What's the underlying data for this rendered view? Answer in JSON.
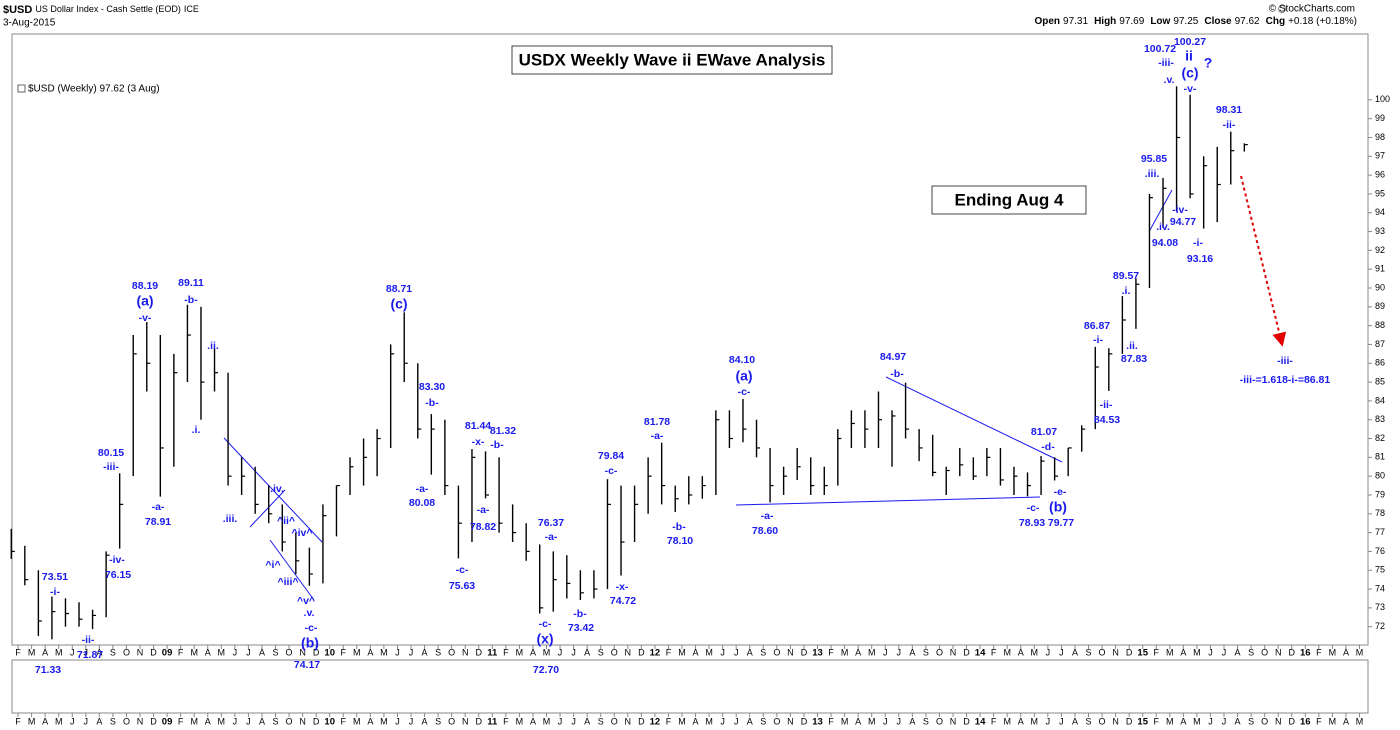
{
  "header": {
    "symbol": "$USD",
    "name": "US Dollar Index - Cash Settle (EOD)",
    "exchange": "ICE",
    "date": "3-Aug-2015",
    "copyright": "© StockCharts.com",
    "ohlc": [
      {
        "label": "Open",
        "value": 97.31
      },
      {
        "label": "High",
        "value": 97.69
      },
      {
        "label": "Low",
        "value": 97.25
      },
      {
        "label": "Close",
        "value": 97.62
      }
    ],
    "change_label": "Chg",
    "change": "+0.18 (+0.18%)"
  },
  "chart_data": {
    "type": "ohlc",
    "title": "USDX Weekly Wave ii EWave Analysis",
    "subtitle": "Ending Aug 4",
    "legend_text": "$USD (Weekly) 97.62 (3 Aug)",
    "x": [
      "2008-01",
      "2008-02",
      "2008-03",
      "2008-04",
      "2008-05",
      "2008-06",
      "2008-07",
      "2008-08",
      "2008-09",
      "2008-10",
      "2008-11",
      "2008-12",
      "2009-01",
      "2009-02",
      "2009-03",
      "2009-04",
      "2009-05",
      "2009-06",
      "2009-07",
      "2009-08",
      "2009-09",
      "2009-10",
      "2009-11",
      "2009-12",
      "2010-01",
      "2010-02",
      "2010-03",
      "2010-04",
      "2010-05",
      "2010-06",
      "2010-07",
      "2010-08",
      "2010-09",
      "2010-10",
      "2010-11",
      "2010-12",
      "2011-01",
      "2011-02",
      "2011-03",
      "2011-04",
      "2011-05",
      "2011-06",
      "2011-07",
      "2011-08",
      "2011-09",
      "2011-10",
      "2011-11",
      "2011-12",
      "2012-01",
      "2012-02",
      "2012-03",
      "2012-04",
      "2012-05",
      "2012-06",
      "2012-07",
      "2012-08",
      "2012-09",
      "2012-10",
      "2012-11",
      "2012-12",
      "2013-01",
      "2013-02",
      "2013-03",
      "2013-04",
      "2013-05",
      "2013-06",
      "2013-07",
      "2013-08",
      "2013-09",
      "2013-10",
      "2013-11",
      "2013-12",
      "2014-01",
      "2014-02",
      "2014-03",
      "2014-04",
      "2014-05",
      "2014-06",
      "2014-07",
      "2014-08",
      "2014-09",
      "2014-10",
      "2014-11",
      "2014-12",
      "2015-01",
      "2015-02",
      "2015-03",
      "2015-04",
      "2015-05",
      "2015-06",
      "2015-07",
      "2015-08"
    ],
    "series": [
      {
        "name": "$USD",
        "color": "#000000",
        "high": [
          77.2,
          76.3,
          75.0,
          73.6,
          73.51,
          73.3,
          72.9,
          76.0,
          80.15,
          87.5,
          88.19,
          87.5,
          86.5,
          89.11,
          89.0,
          86.8,
          85.5,
          81.0,
          80.5,
          79.5,
          78.5,
          77.0,
          76.2,
          78.5,
          79.5,
          81.0,
          82.0,
          82.5,
          87.0,
          88.71,
          86.0,
          83.3,
          83.0,
          79.5,
          81.44,
          81.32,
          81.0,
          78.5,
          77.5,
          76.37,
          76.0,
          75.8,
          75.0,
          75.0,
          79.84,
          79.5,
          79.5,
          81.0,
          81.78,
          79.5,
          80.0,
          80.0,
          83.5,
          83.5,
          84.1,
          83.0,
          81.5,
          80.5,
          81.5,
          81.0,
          80.5,
          82.5,
          83.5,
          83.5,
          84.5,
          83.5,
          84.97,
          82.5,
          82.2,
          80.5,
          81.5,
          81.0,
          81.5,
          81.5,
          80.5,
          80.2,
          81.07,
          81.0,
          81.5,
          82.7,
          86.87,
          86.8,
          89.57,
          90.5,
          95.0,
          95.85,
          100.72,
          100.27,
          97.0,
          97.5,
          98.31,
          97.69
        ],
        "low": [
          75.6,
          74.2,
          71.5,
          71.33,
          72.0,
          72.0,
          71.87,
          72.5,
          76.15,
          80.0,
          84.5,
          78.91,
          80.5,
          85.0,
          83.0,
          84.5,
          79.5,
          79.0,
          78.0,
          77.5,
          76.0,
          74.8,
          74.17,
          74.3,
          76.8,
          79.0,
          79.5,
          80.0,
          81.5,
          85.0,
          82.0,
          80.08,
          79.0,
          75.63,
          76.5,
          78.82,
          77.0,
          76.5,
          75.5,
          72.7,
          72.8,
          73.5,
          73.42,
          73.5,
          74.0,
          74.72,
          76.5,
          78.0,
          78.5,
          78.1,
          78.5,
          78.8,
          79.0,
          81.5,
          81.8,
          81.0,
          78.6,
          79.0,
          79.8,
          79.0,
          79.0,
          79.5,
          81.5,
          81.5,
          81.5,
          80.5,
          82.0,
          80.8,
          80.0,
          79.0,
          80.0,
          79.8,
          80.0,
          79.5,
          79.0,
          78.93,
          79.0,
          79.77,
          80.0,
          81.3,
          82.5,
          84.53,
          86.5,
          87.83,
          90.0,
          93.2,
          94.08,
          94.77,
          93.16,
          93.5,
          95.5,
          97.25
        ],
        "close": [
          76.0,
          74.5,
          72.3,
          72.8,
          72.7,
          72.4,
          72.6,
          75.8,
          78.5,
          86.5,
          86.0,
          81.5,
          85.5,
          87.5,
          85.0,
          85.5,
          80.0,
          80.0,
          78.5,
          78.0,
          76.5,
          75.5,
          74.8,
          77.9,
          79.5,
          80.5,
          81.0,
          82.0,
          86.5,
          86.0,
          82.5,
          82.5,
          79.5,
          77.5,
          81.0,
          79.0,
          77.5,
          77.0,
          76.0,
          73.0,
          74.5,
          74.3,
          73.8,
          74.0,
          78.5,
          76.5,
          78.5,
          80.0,
          79.5,
          78.8,
          79.0,
          79.5,
          83.0,
          82.0,
          82.5,
          81.5,
          79.5,
          80.0,
          80.5,
          79.5,
          79.5,
          82.0,
          82.8,
          82.5,
          83.0,
          83.2,
          82.5,
          81.5,
          80.2,
          80.3,
          80.6,
          80.0,
          81.0,
          79.8,
          80.0,
          79.5,
          80.8,
          80.0,
          81.5,
          82.5,
          85.8,
          86.5,
          88.3,
          90.2,
          94.8,
          95.3,
          98.0,
          95.0,
          96.5,
          95.5,
          97.3,
          97.62
        ]
      }
    ],
    "xlim": [
      "2008-01",
      "2016-06"
    ],
    "xticks": [
      {
        "value": "2008-02",
        "label": "F"
      },
      {
        "value": "2008-03",
        "label": "M"
      },
      {
        "value": "2008-04",
        "label": "A"
      },
      {
        "value": "2008-05",
        "label": "M"
      },
      {
        "value": "2008-06",
        "label": "J"
      },
      {
        "value": "2008-07",
        "label": "J"
      },
      {
        "value": "2008-08",
        "label": "A"
      },
      {
        "value": "2008-09",
        "label": "S"
      },
      {
        "value": "2008-10",
        "label": "O"
      },
      {
        "value": "2008-11",
        "label": "N"
      },
      {
        "value": "2008-12",
        "label": "D"
      },
      {
        "value": "2009-01",
        "label": "09"
      },
      {
        "value": "2009-02",
        "label": "F"
      },
      {
        "value": "2009-03",
        "label": "M"
      },
      {
        "value": "2009-04",
        "label": "A"
      },
      {
        "value": "2009-05",
        "label": "M"
      },
      {
        "value": "2009-06",
        "label": "J"
      },
      {
        "value": "2009-07",
        "label": "J"
      },
      {
        "value": "2009-08",
        "label": "A"
      },
      {
        "value": "2009-09",
        "label": "S"
      },
      {
        "value": "2009-10",
        "label": "O"
      },
      {
        "value": "2009-11",
        "label": "N"
      },
      {
        "value": "2009-12",
        "label": "D"
      },
      {
        "value": "2010-01",
        "label": "10"
      },
      {
        "value": "2010-02",
        "label": "F"
      },
      {
        "value": "2010-03",
        "label": "M"
      },
      {
        "value": "2010-04",
        "label": "A"
      },
      {
        "value": "2010-05",
        "label": "M"
      },
      {
        "value": "2010-06",
        "label": "J"
      },
      {
        "value": "2010-07",
        "label": "J"
      },
      {
        "value": "2010-08",
        "label": "A"
      },
      {
        "value": "2010-09",
        "label": "S"
      },
      {
        "value": "2010-10",
        "label": "O"
      },
      {
        "value": "2010-11",
        "label": "N"
      },
      {
        "value": "2010-12",
        "label": "D"
      },
      {
        "value": "2011-01",
        "label": "11"
      },
      {
        "value": "2011-02",
        "label": "F"
      },
      {
        "value": "2011-03",
        "label": "M"
      },
      {
        "value": "2011-04",
        "label": "A"
      },
      {
        "value": "2011-05",
        "label": "M"
      },
      {
        "value": "2011-06",
        "label": "J"
      },
      {
        "value": "2011-07",
        "label": "J"
      },
      {
        "value": "2011-08",
        "label": "A"
      },
      {
        "value": "2011-09",
        "label": "S"
      },
      {
        "value": "2011-10",
        "label": "O"
      },
      {
        "value": "2011-11",
        "label": "N"
      },
      {
        "value": "2011-12",
        "label": "D"
      },
      {
        "value": "2012-01",
        "label": "12"
      },
      {
        "value": "2012-02",
        "label": "F"
      },
      {
        "value": "2012-03",
        "label": "M"
      },
      {
        "value": "2012-04",
        "label": "A"
      },
      {
        "value": "2012-05",
        "label": "M"
      },
      {
        "value": "2012-06",
        "label": "J"
      },
      {
        "value": "2012-07",
        "label": "J"
      },
      {
        "value": "2012-08",
        "label": "A"
      },
      {
        "value": "2012-09",
        "label": "S"
      },
      {
        "value": "2012-10",
        "label": "O"
      },
      {
        "value": "2012-11",
        "label": "N"
      },
      {
        "value": "2012-12",
        "label": "D"
      },
      {
        "value": "2013-01",
        "label": "13"
      },
      {
        "value": "2013-02",
        "label": "F"
      },
      {
        "value": "2013-03",
        "label": "M"
      },
      {
        "value": "2013-04",
        "label": "A"
      },
      {
        "value": "2013-05",
        "label": "M"
      },
      {
        "value": "2013-06",
        "label": "J"
      },
      {
        "value": "2013-07",
        "label": "J"
      },
      {
        "value": "2013-08",
        "label": "A"
      },
      {
        "value": "2013-09",
        "label": "S"
      },
      {
        "value": "2013-10",
        "label": "O"
      },
      {
        "value": "2013-11",
        "label": "N"
      },
      {
        "value": "2013-12",
        "label": "D"
      },
      {
        "value": "2014-01",
        "label": "14"
      },
      {
        "value": "2014-02",
        "label": "F"
      },
      {
        "value": "2014-03",
        "label": "M"
      },
      {
        "value": "2014-04",
        "label": "A"
      },
      {
        "value": "2014-05",
        "label": "M"
      },
      {
        "value": "2014-06",
        "label": "J"
      },
      {
        "value": "2014-07",
        "label": "J"
      },
      {
        "value": "2014-08",
        "label": "A"
      },
      {
        "value": "2014-09",
        "label": "S"
      },
      {
        "value": "2014-10",
        "label": "O"
      },
      {
        "value": "2014-11",
        "label": "N"
      },
      {
        "value": "2014-12",
        "label": "D"
      },
      {
        "value": "2015-01",
        "label": "15"
      },
      {
        "value": "2015-02",
        "label": "F"
      },
      {
        "value": "2015-03",
        "label": "M"
      },
      {
        "value": "2015-04",
        "label": "A"
      },
      {
        "value": "2015-05",
        "label": "M"
      },
      {
        "value": "2015-06",
        "label": "J"
      },
      {
        "value": "2015-07",
        "label": "J"
      },
      {
        "value": "2015-08",
        "label": "A"
      },
      {
        "value": "2015-09",
        "label": "S"
      },
      {
        "value": "2015-10",
        "label": "O"
      },
      {
        "value": "2015-11",
        "label": "N"
      },
      {
        "value": "2015-12",
        "label": "D"
      },
      {
        "value": "2016-01",
        "label": "16"
      },
      {
        "value": "2016-02",
        "label": "F"
      },
      {
        "value": "2016-03",
        "label": "M"
      },
      {
        "value": "2016-04",
        "label": "A"
      },
      {
        "value": "2016-05",
        "label": "M"
      }
    ],
    "ylim": [
      71,
      103.5
    ],
    "yticks": [
      72,
      73,
      74,
      75,
      76,
      77,
      78,
      79,
      80,
      81,
      82,
      83,
      84,
      85,
      86,
      87,
      88,
      89,
      90,
      91,
      92,
      93,
      94,
      95,
      96,
      97,
      98,
      99,
      100
    ],
    "annotations": [
      "73.51",
      "-i-",
      "71.33",
      "-ii-",
      "71.87",
      "80.15",
      "-iii-",
      "-iv-",
      "76.15",
      "88.19",
      "(a)",
      "-v-",
      "89.11",
      "-b-",
      ".ii.",
      ".i.",
      "-a-",
      "78.91",
      ".iii.",
      ".iv.",
      "^ii^",
      "^iv^",
      "^i^",
      "^iii^",
      "^v^",
      ".v.",
      "-c-",
      "(b)",
      "74.17",
      "88.71",
      "(c)",
      "83.30",
      "-b-",
      "-a-",
      "80.08",
      "-c-",
      "75.63",
      "81.44",
      "-x-",
      "81.32",
      "-b-",
      "-a-",
      "78.82",
      "76.37",
      "-a-",
      "-c-",
      "(x)",
      "72.70",
      "-b-",
      "73.42",
      "79.84",
      "-c-",
      "-x-",
      "74.72",
      "81.78",
      "-a-",
      "-b-",
      "78.10",
      "84.10",
      "(a)",
      "-c-",
      "-a-",
      "78.60",
      "84.97",
      "-b-",
      "81.07",
      "-d-",
      "-e-",
      "(b)",
      "-c-",
      "78.93",
      "79.77",
      "86.87",
      "-i-",
      "-ii-",
      "84.53",
      "89.57",
      ".i.",
      ".ii.",
      "87.83",
      "95.85",
      ".iii.",
      ".iv.",
      "94.08",
      "-iv-",
      "94.77",
      "100.72",
      "-iii-",
      ".v.",
      "100.27",
      "ii",
      "(c)",
      "?",
      "-v-",
      "-i-",
      "93.16",
      "98.31",
      "-ii-",
      "-iii-",
      "-iii-=1.618-i-=86.81"
    ]
  }
}
